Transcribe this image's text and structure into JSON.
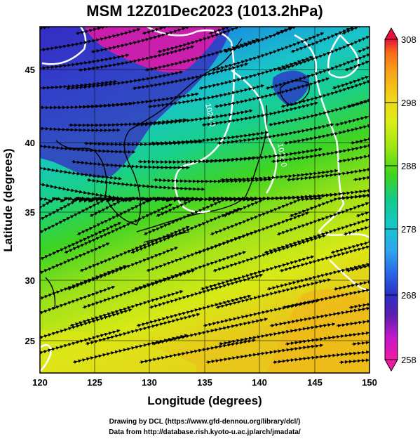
{
  "title": "MSM 12Z01Dec2023 (1013.2hPa)",
  "xlabel": "Longitude (degrees)",
  "ylabel": "Latitude  (degrees)",
  "xticks": [
    "120",
    "125",
    "130",
    "135",
    "140",
    "145",
    "150"
  ],
  "yticks": [
    "25",
    "30",
    "35",
    "40",
    "45"
  ],
  "colorbar": {
    "ticks": [
      "308",
      "298",
      "288",
      "278",
      "268",
      "258"
    ],
    "colors": [
      "#e8103a",
      "#f76a18",
      "#f5a31a",
      "#f2d21a",
      "#d9ee16",
      "#9ae514",
      "#3fd51a",
      "#15c98a",
      "#17c6cf",
      "#2fa6ee",
      "#2a66e6",
      "#2b2fc6",
      "#5a1fae",
      "#c318c9",
      "#ef1aa2"
    ]
  },
  "contour_labels": [
    "1020.0",
    "1016.0"
  ],
  "credits": {
    "line1": "Drawing by DCL (https://www.gfd-dennou.org/library/dcl/)",
    "line2": "Data from http://database.rish.kyoto-u.ac.jp/arch/jmadata/"
  },
  "map_data": {
    "field": "temperature (K) shading with streamlines and isobars",
    "lon_range": [
      120,
      150
    ],
    "lat_range": [
      22.5,
      47.5
    ],
    "value_range": [
      258,
      308
    ]
  }
}
